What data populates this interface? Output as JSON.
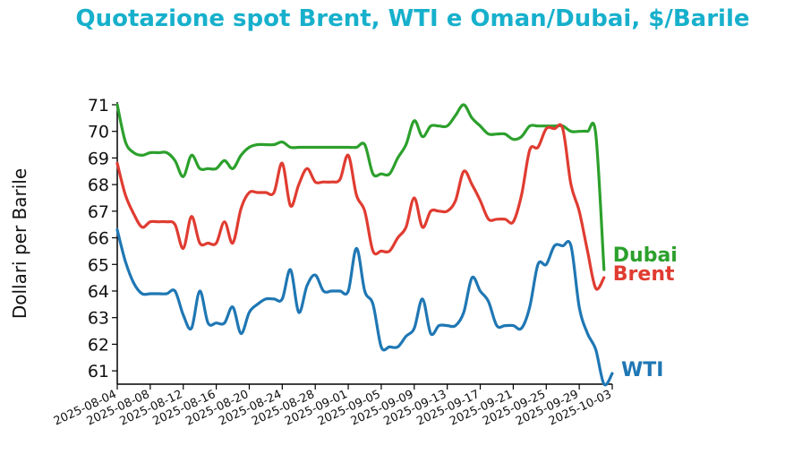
{
  "chart_data": {
    "type": "line",
    "title": "Quotazione spot Brent, WTI e Oman/Dubai, $/Barile",
    "xlabel": "",
    "ylabel": "Dollari per Barile",
    "ylim": [
      60.5,
      71.1
    ],
    "yticks": [
      61,
      62,
      63,
      64,
      65,
      66,
      67,
      68,
      69,
      70,
      71
    ],
    "xticks": [
      "2025-08-04",
      "2025-08-08",
      "2025-08-12",
      "2025-08-16",
      "2025-08-20",
      "2025-08-24",
      "2025-08-28",
      "2025-09-01",
      "2025-09-05",
      "2025-09-09",
      "2025-09-13",
      "2025-09-17",
      "2025-09-21",
      "2025-09-25",
      "2025-09-29",
      "2025-10-03"
    ],
    "xlim": [
      "2025-08-04",
      "2025-10-03"
    ],
    "grid": false,
    "legend": "inline labels at line ends",
    "series": [
      {
        "name": "Dubai",
        "color": "#2ca02c",
        "points": [
          [
            "2025-08-04",
            71.0
          ],
          [
            "2025-08-05",
            69.6
          ],
          [
            "2025-08-06",
            69.2
          ],
          [
            "2025-08-07",
            69.1
          ],
          [
            "2025-08-08",
            69.2
          ],
          [
            "2025-08-09",
            69.2
          ],
          [
            "2025-08-10",
            69.2
          ],
          [
            "2025-08-11",
            68.9
          ],
          [
            "2025-08-12",
            68.3
          ],
          [
            "2025-08-13",
            69.1
          ],
          [
            "2025-08-14",
            68.6
          ],
          [
            "2025-08-15",
            68.6
          ],
          [
            "2025-08-16",
            68.6
          ],
          [
            "2025-08-17",
            68.9
          ],
          [
            "2025-08-18",
            68.6
          ],
          [
            "2025-08-19",
            69.1
          ],
          [
            "2025-08-20",
            69.4
          ],
          [
            "2025-08-21",
            69.5
          ],
          [
            "2025-08-22",
            69.5
          ],
          [
            "2025-08-23",
            69.5
          ],
          [
            "2025-08-24",
            69.6
          ],
          [
            "2025-08-25",
            69.4
          ],
          [
            "2025-08-26",
            69.4
          ],
          [
            "2025-08-27",
            69.4
          ],
          [
            "2025-08-28",
            69.4
          ],
          [
            "2025-08-29",
            69.4
          ],
          [
            "2025-08-30",
            69.4
          ],
          [
            "2025-08-31",
            69.4
          ],
          [
            "2025-09-01",
            69.4
          ],
          [
            "2025-09-02",
            69.4
          ],
          [
            "2025-09-03",
            69.5
          ],
          [
            "2025-09-04",
            68.4
          ],
          [
            "2025-09-05",
            68.4
          ],
          [
            "2025-09-06",
            68.4
          ],
          [
            "2025-09-07",
            69.0
          ],
          [
            "2025-09-08",
            69.5
          ],
          [
            "2025-09-09",
            70.4
          ],
          [
            "2025-09-10",
            69.8
          ],
          [
            "2025-09-11",
            70.2
          ],
          [
            "2025-09-12",
            70.2
          ],
          [
            "2025-09-13",
            70.2
          ],
          [
            "2025-09-14",
            70.6
          ],
          [
            "2025-09-15",
            71.0
          ],
          [
            "2025-09-16",
            70.5
          ],
          [
            "2025-09-17",
            70.2
          ],
          [
            "2025-09-18",
            69.9
          ],
          [
            "2025-09-19",
            69.9
          ],
          [
            "2025-09-20",
            69.9
          ],
          [
            "2025-09-21",
            69.7
          ],
          [
            "2025-09-22",
            69.8
          ],
          [
            "2025-09-23",
            70.2
          ],
          [
            "2025-09-24",
            70.2
          ],
          [
            "2025-09-25",
            70.2
          ],
          [
            "2025-09-26",
            70.2
          ],
          [
            "2025-09-27",
            70.2
          ],
          [
            "2025-09-28",
            70.0
          ],
          [
            "2025-09-29",
            70.0
          ],
          [
            "2025-09-30",
            70.0
          ],
          [
            "2025-10-01",
            69.9
          ],
          [
            "2025-10-02",
            64.8
          ]
        ]
      },
      {
        "name": "Brent",
        "color": "#e03c31",
        "points": [
          [
            "2025-08-04",
            68.8
          ],
          [
            "2025-08-05",
            67.6
          ],
          [
            "2025-08-06",
            66.9
          ],
          [
            "2025-08-07",
            66.4
          ],
          [
            "2025-08-08",
            66.6
          ],
          [
            "2025-08-09",
            66.6
          ],
          [
            "2025-08-10",
            66.6
          ],
          [
            "2025-08-11",
            66.5
          ],
          [
            "2025-08-12",
            65.6
          ],
          [
            "2025-08-13",
            66.8
          ],
          [
            "2025-08-14",
            65.8
          ],
          [
            "2025-08-15",
            65.8
          ],
          [
            "2025-08-16",
            65.8
          ],
          [
            "2025-08-17",
            66.6
          ],
          [
            "2025-08-18",
            65.8
          ],
          [
            "2025-08-19",
            67.1
          ],
          [
            "2025-08-20",
            67.7
          ],
          [
            "2025-08-21",
            67.7
          ],
          [
            "2025-08-22",
            67.7
          ],
          [
            "2025-08-23",
            67.7
          ],
          [
            "2025-08-24",
            68.8
          ],
          [
            "2025-08-25",
            67.2
          ],
          [
            "2025-08-26",
            68.0
          ],
          [
            "2025-08-27",
            68.6
          ],
          [
            "2025-08-28",
            68.1
          ],
          [
            "2025-08-29",
            68.1
          ],
          [
            "2025-08-30",
            68.1
          ],
          [
            "2025-08-31",
            68.2
          ],
          [
            "2025-09-01",
            69.1
          ],
          [
            "2025-09-02",
            67.6
          ],
          [
            "2025-09-03",
            67.0
          ],
          [
            "2025-09-04",
            65.5
          ],
          [
            "2025-09-05",
            65.5
          ],
          [
            "2025-09-06",
            65.5
          ],
          [
            "2025-09-07",
            66.0
          ],
          [
            "2025-09-08",
            66.4
          ],
          [
            "2025-09-09",
            67.5
          ],
          [
            "2025-09-10",
            66.4
          ],
          [
            "2025-09-11",
            67.0
          ],
          [
            "2025-09-12",
            67.0
          ],
          [
            "2025-09-13",
            67.0
          ],
          [
            "2025-09-14",
            67.4
          ],
          [
            "2025-09-15",
            68.5
          ],
          [
            "2025-09-16",
            68.0
          ],
          [
            "2025-09-17",
            67.4
          ],
          [
            "2025-09-18",
            66.7
          ],
          [
            "2025-09-19",
            66.7
          ],
          [
            "2025-09-20",
            66.7
          ],
          [
            "2025-09-21",
            66.6
          ],
          [
            "2025-09-22",
            67.6
          ],
          [
            "2025-09-23",
            69.3
          ],
          [
            "2025-09-24",
            69.4
          ],
          [
            "2025-09-25",
            70.1
          ],
          [
            "2025-09-26",
            70.1
          ],
          [
            "2025-09-27",
            70.1
          ],
          [
            "2025-09-28",
            68.0
          ],
          [
            "2025-09-29",
            67.0
          ],
          [
            "2025-09-30",
            65.5
          ],
          [
            "2025-10-01",
            64.1
          ],
          [
            "2025-10-02",
            64.5
          ]
        ]
      },
      {
        "name": "WTI",
        "color": "#1f77b4",
        "points": [
          [
            "2025-08-04",
            66.3
          ],
          [
            "2025-08-05",
            65.1
          ],
          [
            "2025-08-06",
            64.3
          ],
          [
            "2025-08-07",
            63.9
          ],
          [
            "2025-08-08",
            63.9
          ],
          [
            "2025-08-09",
            63.9
          ],
          [
            "2025-08-10",
            63.9
          ],
          [
            "2025-08-11",
            64.0
          ],
          [
            "2025-08-12",
            63.1
          ],
          [
            "2025-08-13",
            62.6
          ],
          [
            "2025-08-14",
            64.0
          ],
          [
            "2025-08-15",
            62.8
          ],
          [
            "2025-08-16",
            62.8
          ],
          [
            "2025-08-17",
            62.8
          ],
          [
            "2025-08-18",
            63.4
          ],
          [
            "2025-08-19",
            62.4
          ],
          [
            "2025-08-20",
            63.2
          ],
          [
            "2025-08-21",
            63.5
          ],
          [
            "2025-08-22",
            63.7
          ],
          [
            "2025-08-23",
            63.7
          ],
          [
            "2025-08-24",
            63.7
          ],
          [
            "2025-08-25",
            64.8
          ],
          [
            "2025-08-26",
            63.2
          ],
          [
            "2025-08-27",
            64.2
          ],
          [
            "2025-08-28",
            64.6
          ],
          [
            "2025-08-29",
            64.0
          ],
          [
            "2025-08-30",
            64.0
          ],
          [
            "2025-08-31",
            64.0
          ],
          [
            "2025-09-01",
            64.0
          ],
          [
            "2025-09-02",
            65.6
          ],
          [
            "2025-09-03",
            64.0
          ],
          [
            "2025-09-04",
            63.5
          ],
          [
            "2025-09-05",
            61.9
          ],
          [
            "2025-09-06",
            61.9
          ],
          [
            "2025-09-07",
            61.9
          ],
          [
            "2025-09-08",
            62.3
          ],
          [
            "2025-09-09",
            62.6
          ],
          [
            "2025-09-10",
            63.7
          ],
          [
            "2025-09-11",
            62.4
          ],
          [
            "2025-09-12",
            62.7
          ],
          [
            "2025-09-13",
            62.7
          ],
          [
            "2025-09-14",
            62.7
          ],
          [
            "2025-09-15",
            63.2
          ],
          [
            "2025-09-16",
            64.5
          ],
          [
            "2025-09-17",
            64.0
          ],
          [
            "2025-09-18",
            63.6
          ],
          [
            "2025-09-19",
            62.7
          ],
          [
            "2025-09-20",
            62.7
          ],
          [
            "2025-09-21",
            62.7
          ],
          [
            "2025-09-22",
            62.6
          ],
          [
            "2025-09-23",
            63.4
          ],
          [
            "2025-09-24",
            65.0
          ],
          [
            "2025-09-25",
            65.0
          ],
          [
            "2025-09-26",
            65.7
          ],
          [
            "2025-09-27",
            65.7
          ],
          [
            "2025-09-28",
            65.7
          ],
          [
            "2025-09-29",
            63.4
          ],
          [
            "2025-09-30",
            62.4
          ],
          [
            "2025-10-01",
            61.8
          ],
          [
            "2025-10-02",
            60.5
          ],
          [
            "2025-10-03",
            60.9
          ]
        ]
      }
    ]
  }
}
